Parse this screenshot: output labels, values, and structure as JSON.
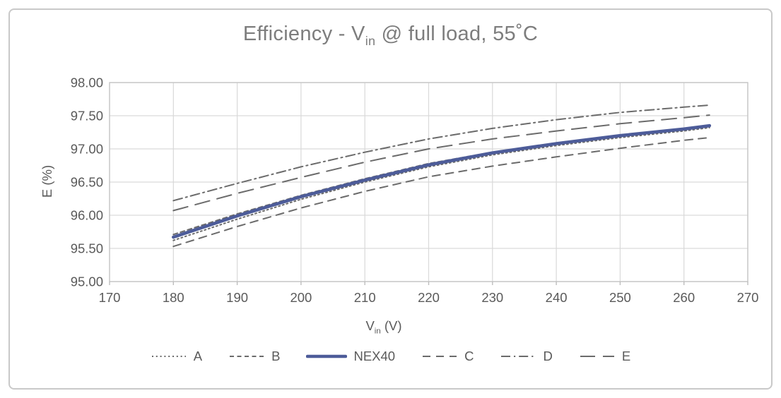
{
  "colors": {
    "accent_blue": "#4d5c99",
    "series_gray": "#6b6b6b",
    "grid": "#d9d9d9",
    "plot_border": "#c6c6c6",
    "tick_stub": "#bdbdbd",
    "title_text": "#7d7d7d",
    "label_text": "#5a5a5a",
    "page_border": "#c9c9c9"
  },
  "chart_data": {
    "type": "line",
    "title": "Efficiency - Vin @ full load, 55˚C",
    "title_parts": {
      "pre": "Efficiency - V",
      "sub": "in",
      "post": " @ full load, 55˚C"
    },
    "xlabel": "Vin (V)",
    "xlabel_parts": {
      "main": "V",
      "sub": "in",
      "rest": " (V)"
    },
    "ylabel": "E (%)",
    "xlim": [
      170,
      270
    ],
    "ylim": [
      95.0,
      98.0
    ],
    "grid": true,
    "legend_position": "bottom",
    "x_ticks": [
      "170",
      "180",
      "190",
      "200",
      "210",
      "220",
      "230",
      "240",
      "250",
      "260",
      "270"
    ],
    "y_ticks": [
      "95.00",
      "95.50",
      "96.00",
      "96.50",
      "97.00",
      "97.50",
      "98.00"
    ],
    "x": [
      180,
      190,
      200,
      210,
      220,
      230,
      240,
      250,
      260,
      264
    ],
    "series": [
      {
        "name": "A",
        "dash": "2 3.8",
        "width": 2,
        "color": "#6b6b6b",
        "values": [
          95.62,
          95.94,
          96.24,
          96.5,
          96.73,
          96.91,
          97.05,
          97.17,
          97.27,
          97.32
        ]
      },
      {
        "name": "B",
        "dash": "6 4.5",
        "width": 2,
        "color": "#6b6b6b",
        "values": [
          95.71,
          96.02,
          96.3,
          96.55,
          96.78,
          96.95,
          97.09,
          97.21,
          97.31,
          97.35
        ]
      },
      {
        "name": "NEX40",
        "dash": "",
        "width": 4.6,
        "color": "#4d5c99",
        "values": [
          95.67,
          95.99,
          96.28,
          96.53,
          96.76,
          96.94,
          97.08,
          97.2,
          97.3,
          97.35
        ]
      },
      {
        "name": "C",
        "dash": "11 8",
        "width": 2,
        "color": "#6b6b6b",
        "values": [
          95.53,
          95.83,
          96.11,
          96.36,
          96.58,
          96.74,
          96.88,
          97.01,
          97.13,
          97.17
        ]
      },
      {
        "name": "D",
        "dash": "13 5 2.2 5",
        "width": 2,
        "color": "#6b6b6b",
        "values": [
          96.22,
          96.48,
          96.73,
          96.95,
          97.15,
          97.31,
          97.44,
          97.55,
          97.63,
          97.66
        ]
      },
      {
        "name": "E",
        "dash": "21 11",
        "width": 2,
        "color": "#6b6b6b",
        "values": [
          96.07,
          96.33,
          96.57,
          96.8,
          97.0,
          97.15,
          97.27,
          97.38,
          97.47,
          97.51
        ]
      }
    ]
  }
}
